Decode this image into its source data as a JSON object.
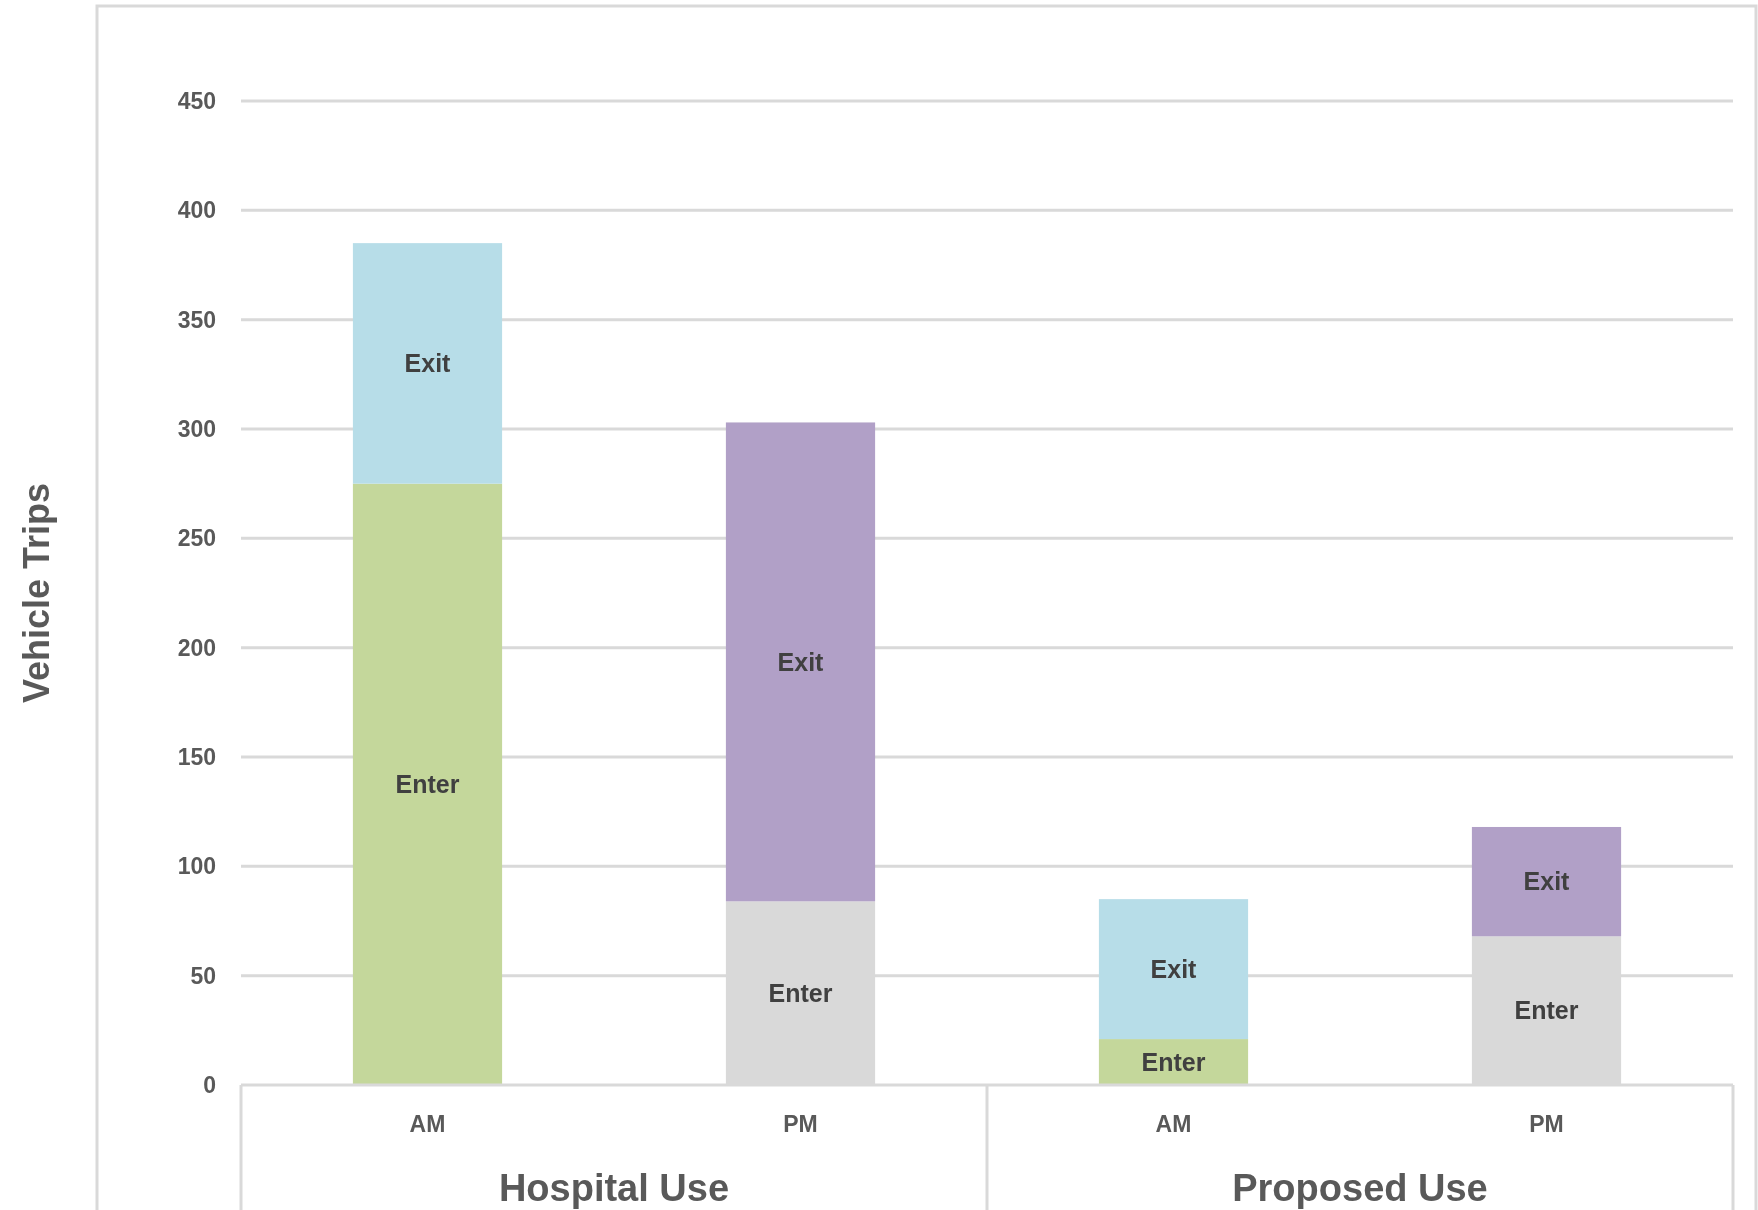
{
  "chart_data": {
    "type": "bar",
    "stacked": true,
    "ylabel": "Vehicle Trips",
    "categories": [
      "AM",
      "PM",
      "AM",
      "PM"
    ],
    "annotations": [
      "Hospital Use",
      "Proposed Use"
    ],
    "series": [
      {
        "name": "Enter",
        "colors": [
          "#c4d79b",
          "#d9d9d9",
          "#c4d79b",
          "#d9d9d9"
        ],
        "values": [
          275,
          84,
          21,
          68
        ]
      },
      {
        "name": "Exit",
        "colors": [
          "#b7dde8",
          "#b1a0c7",
          "#b7dde8",
          "#b1a0c7"
        ],
        "values": [
          110,
          219,
          64,
          50
        ]
      }
    ],
    "ylim": [
      0,
      450
    ],
    "yticks": [
      0,
      50,
      100,
      150,
      200,
      250,
      300,
      350,
      400,
      450
    ],
    "grid": "y",
    "legend": false
  }
}
